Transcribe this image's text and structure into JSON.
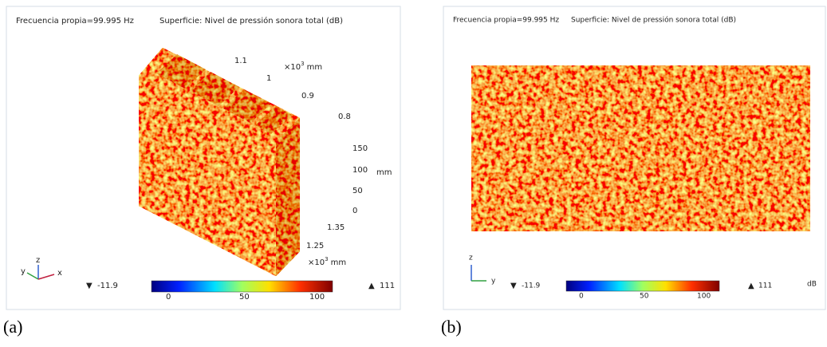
{
  "panels": [
    {
      "title": "Frecuencia propia=99.995 Hz",
      "subtitle": "Superficie: Nivel de pressión sonora total (dB)",
      "axis_x_ticks": [
        "1.1",
        "1",
        "0.9",
        "0.8"
      ],
      "axis_x_unit": {
        "base": "×10",
        "exp": "3",
        "unit": "mm"
      },
      "axis_z_ticks": [
        "150",
        "100",
        "50",
        "0"
      ],
      "axis_z_unit": "mm",
      "axis_y_ticks": [
        "1.35",
        "1.25"
      ],
      "axis_y_unit": {
        "base": "×10",
        "exp": "3",
        "unit": "mm"
      },
      "triad": [
        "y",
        "z",
        "x"
      ],
      "min": "-11.9",
      "max": "111",
      "colorbar_ticks": [
        "0",
        "50",
        "100"
      ],
      "caption": "(a)"
    },
    {
      "title": "Frecuencia propia=99.995 Hz",
      "subtitle": "Superficie: Nivel de pressión sonora total (dB)",
      "triad": [
        "z",
        "y"
      ],
      "min": "-11.9",
      "max": "111",
      "colorbar_ticks": [
        "0",
        "50",
        "100"
      ],
      "unit": "dB",
      "caption": "(b)"
    }
  ]
}
